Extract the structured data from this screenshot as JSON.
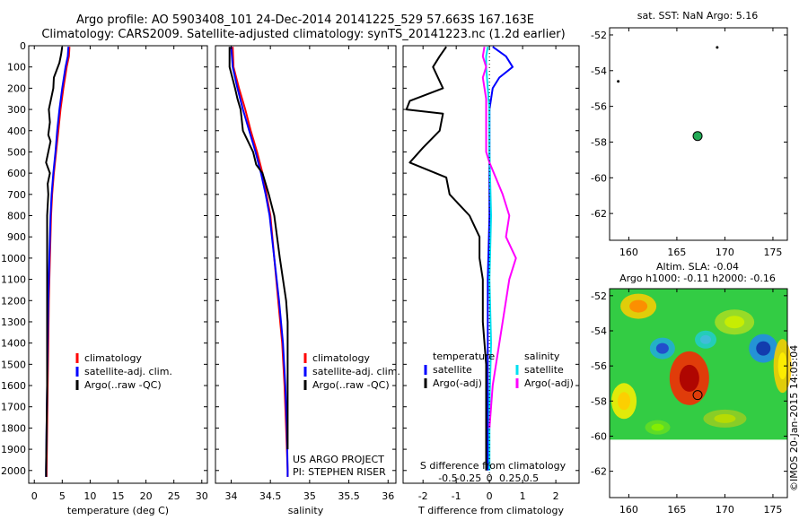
{
  "title_line1": "Argo profile: AO 5903408_101 24-Dec-2014 20141225_529 57.663S 167.163E",
  "title_line2": "Climatology: CARS2009. Satellite-adjusted climatology: synTS_20141223.nc (1.2d earlier)",
  "watermark": "©IMOS 20-Jan-2015 14:05:04",
  "colors": {
    "climatology": "#ff0000",
    "satellite": "#0000ff",
    "argo": "#000000",
    "sal_satellite": "#00e0f0",
    "sal_argo": "#ff00ff"
  },
  "chart_data": [
    {
      "id": "temperature-profile",
      "type": "line",
      "xlabel": "temperature (deg C)",
      "xlim": [
        -1,
        31
      ],
      "ylim": [
        2060,
        0
      ],
      "xticks": [
        "0",
        "5",
        "10",
        "15",
        "20",
        "25",
        "30"
      ],
      "xtick_values": [
        0,
        5,
        10,
        15,
        20,
        25,
        30
      ],
      "yticks": [
        "0",
        "100",
        "200",
        "300",
        "400",
        "500",
        "600",
        "700",
        "800",
        "900",
        "1000",
        "1100",
        "1200",
        "1300",
        "1400",
        "1500",
        "1600",
        "1700",
        "1800",
        "1900",
        "2000"
      ],
      "ytick_values": [
        0,
        100,
        200,
        300,
        400,
        500,
        600,
        700,
        800,
        900,
        1000,
        1100,
        1200,
        1300,
        1400,
        1500,
        1600,
        1700,
        1800,
        1900,
        2000
      ],
      "legend": [
        "climatology",
        "satellite-adj. clim.",
        "Argo(..raw -QC)"
      ],
      "series": [
        {
          "name": "climatology",
          "color": "#ff0000",
          "points": [
            [
              6.3,
              5
            ],
            [
              6.2,
              50
            ],
            [
              5.8,
              100
            ],
            [
              5.2,
              200
            ],
            [
              4.7,
              300
            ],
            [
              4.3,
              400
            ],
            [
              3.9,
              500
            ],
            [
              3.5,
              600
            ],
            [
              3.2,
              700
            ],
            [
              3.0,
              800
            ],
            [
              2.8,
              1000
            ],
            [
              2.6,
              1200
            ],
            [
              2.5,
              1400
            ],
            [
              2.4,
              1600
            ],
            [
              2.3,
              1800
            ],
            [
              2.2,
              2000
            ],
            [
              2.2,
              2030
            ]
          ]
        },
        {
          "name": "satellite-adj. clim.",
          "color": "#0000ff",
          "points": [
            [
              6.1,
              5
            ],
            [
              6.0,
              50
            ],
            [
              5.6,
              100
            ],
            [
              5.0,
              200
            ],
            [
              4.5,
              300
            ],
            [
              4.1,
              400
            ],
            [
              3.8,
              500
            ],
            [
              3.4,
              600
            ],
            [
              3.1,
              700
            ],
            [
              2.9,
              800
            ],
            [
              2.7,
              1000
            ],
            [
              2.5,
              1200
            ],
            [
              2.4,
              1400
            ],
            [
              2.3,
              1600
            ],
            [
              2.2,
              1800
            ],
            [
              2.1,
              2000
            ],
            [
              2.1,
              2030
            ]
          ]
        },
        {
          "name": "Argo(..raw -QC)",
          "color": "#000000",
          "points": [
            [
              5.0,
              5
            ],
            [
              4.8,
              40
            ],
            [
              4.5,
              80
            ],
            [
              3.5,
              150
            ],
            [
              3.4,
              200
            ],
            [
              2.6,
              300
            ],
            [
              2.8,
              360
            ],
            [
              2.5,
              420
            ],
            [
              2.9,
              450
            ],
            [
              2.1,
              550
            ],
            [
              2.8,
              600
            ],
            [
              2.4,
              650
            ],
            [
              2.5,
              700
            ],
            [
              2.3,
              800
            ],
            [
              2.3,
              1000
            ],
            [
              2.3,
              1200
            ],
            [
              2.3,
              1400
            ],
            [
              2.3,
              1600
            ],
            [
              2.2,
              1800
            ],
            [
              2.1,
              2000
            ],
            [
              2.1,
              2030
            ]
          ]
        }
      ]
    },
    {
      "id": "salinity-profile",
      "type": "line",
      "xlabel": "salinity",
      "xlim": [
        33.8,
        36.1
      ],
      "ylim": [
        2060,
        0
      ],
      "xticks": [
        "34",
        "34.5",
        "35",
        "35.5",
        "36"
      ],
      "xtick_values": [
        34,
        34.5,
        35,
        35.5,
        36
      ],
      "legend": [
        "climatology",
        "satellite-adj. clim.",
        "Argo(..raw -QC)"
      ],
      "annotations": [
        "US ARGO PROJECT",
        "PI: STEPHEN RISER"
      ],
      "series": [
        {
          "name": "climatology",
          "color": "#ff0000",
          "points": [
            [
              34.02,
              5
            ],
            [
              34.03,
              100
            ],
            [
              34.1,
              200
            ],
            [
              34.18,
              300
            ],
            [
              34.25,
              400
            ],
            [
              34.33,
              500
            ],
            [
              34.4,
              600
            ],
            [
              34.45,
              700
            ],
            [
              34.5,
              800
            ],
            [
              34.55,
              1000
            ],
            [
              34.6,
              1200
            ],
            [
              34.65,
              1400
            ],
            [
              34.68,
              1600
            ],
            [
              34.7,
              1800
            ],
            [
              34.72,
              2000
            ],
            [
              34.72,
              2030
            ]
          ]
        },
        {
          "name": "satellite-adj. clim.",
          "color": "#0000ff",
          "points": [
            [
              34.0,
              5
            ],
            [
              34.02,
              100
            ],
            [
              34.08,
              200
            ],
            [
              34.15,
              300
            ],
            [
              34.23,
              400
            ],
            [
              34.31,
              500
            ],
            [
              34.38,
              600
            ],
            [
              34.44,
              700
            ],
            [
              34.49,
              800
            ],
            [
              34.55,
              1000
            ],
            [
              34.61,
              1200
            ],
            [
              34.66,
              1400
            ],
            [
              34.69,
              1600
            ],
            [
              34.71,
              1800
            ],
            [
              34.72,
              2000
            ],
            [
              34.72,
              2030
            ]
          ]
        },
        {
          "name": "Argo(..raw -QC)",
          "color": "#000000",
          "points": [
            [
              33.98,
              5
            ],
            [
              33.98,
              100
            ],
            [
              34.05,
              200
            ],
            [
              34.08,
              250
            ],
            [
              34.12,
              300
            ],
            [
              34.15,
              400
            ],
            [
              34.28,
              500
            ],
            [
              34.32,
              560
            ],
            [
              34.4,
              600
            ],
            [
              34.48,
              700
            ],
            [
              34.55,
              800
            ],
            [
              34.62,
              1000
            ],
            [
              34.66,
              1100
            ],
            [
              34.7,
              1200
            ],
            [
              34.72,
              1300
            ],
            [
              34.72,
              1500
            ],
            [
              34.72,
              1700
            ],
            [
              34.72,
              1900
            ]
          ]
        }
      ]
    },
    {
      "id": "difference-profile",
      "type": "line",
      "xlabel": "T difference from climatology",
      "xlabel_top": "S difference from climatology",
      "xlim": [
        -2.6,
        2.7
      ],
      "ylim": [
        2060,
        0
      ],
      "xticks": [
        "-2",
        "-1",
        "0",
        "1",
        "2"
      ],
      "xtick_values": [
        -2,
        -1,
        0,
        1,
        2
      ],
      "sticks": [
        "-0.5",
        "-0.25",
        "0",
        "0.25",
        "0.5"
      ],
      "stick_values": [
        -0.5,
        -0.25,
        0,
        0.25,
        0.5
      ],
      "legend_temperature": [
        "temperature",
        "satellite",
        "Argo(-adj)"
      ],
      "legend_salinity": [
        "salinity",
        "satellite",
        "Argo(-adj)"
      ],
      "series": [
        {
          "name": "temperature satellite",
          "color": "#0000ff",
          "points": [
            [
              0.1,
              5
            ],
            [
              0.5,
              50
            ],
            [
              0.7,
              100
            ],
            [
              0.3,
              150
            ],
            [
              0.1,
              200
            ],
            [
              0.0,
              300
            ],
            [
              0.0,
              500
            ],
            [
              0.0,
              800
            ],
            [
              -0.05,
              1100
            ],
            [
              -0.05,
              1500
            ],
            [
              -0.05,
              2000
            ]
          ]
        },
        {
          "name": "salinity satellite",
          "color": "#00e0f0",
          "points": [
            [
              -0.05,
              5
            ],
            [
              -0.1,
              50
            ],
            [
              -0.1,
              100
            ],
            [
              -0.05,
              200
            ],
            [
              0.0,
              300
            ],
            [
              0.0,
              500
            ],
            [
              0.05,
              800
            ],
            [
              0.0,
              1100
            ],
            [
              0.05,
              1400
            ],
            [
              0.0,
              1700
            ],
            [
              0.0,
              2000
            ]
          ]
        },
        {
          "name": "salinity Argo(-adj)",
          "color": "#ff00ff",
          "points": [
            [
              -0.15,
              5
            ],
            [
              -0.2,
              50
            ],
            [
              -0.1,
              100
            ],
            [
              -0.2,
              150
            ],
            [
              -0.1,
              250
            ],
            [
              -0.1,
              300
            ],
            [
              -0.1,
              400
            ],
            [
              -0.1,
              500
            ],
            [
              0.0,
              550
            ],
            [
              0.4,
              700
            ],
            [
              0.6,
              800
            ],
            [
              0.5,
              900
            ],
            [
              0.8,
              1000
            ],
            [
              0.6,
              1100
            ],
            [
              0.5,
              1200
            ],
            [
              0.4,
              1300
            ],
            [
              0.3,
              1400
            ],
            [
              0.2,
              1500
            ],
            [
              0.1,
              1600
            ],
            [
              0.05,
              1700
            ],
            [
              0.0,
              1800
            ]
          ]
        },
        {
          "name": "temperature Argo(-adj)",
          "color": "#000000",
          "points": [
            [
              -1.3,
              5
            ],
            [
              -1.5,
              50
            ],
            [
              -1.7,
              100
            ],
            [
              -1.4,
              200
            ],
            [
              -2.4,
              260
            ],
            [
              -2.5,
              300
            ],
            [
              -1.4,
              320
            ],
            [
              -1.5,
              400
            ],
            [
              -2.0,
              480
            ],
            [
              -2.4,
              550
            ],
            [
              -1.3,
              620
            ],
            [
              -1.2,
              700
            ],
            [
              -0.6,
              800
            ],
            [
              -0.3,
              900
            ],
            [
              -0.3,
              1000
            ],
            [
              -0.2,
              1100
            ],
            [
              -0.2,
              1300
            ],
            [
              -0.1,
              1500
            ],
            [
              -0.1,
              1700
            ],
            [
              -0.1,
              1900
            ],
            [
              -0.1,
              2000
            ]
          ]
        }
      ]
    },
    {
      "id": "sst-map",
      "type": "scatter",
      "title": "sat. SST: NaN Argo: 5.16",
      "xlim": [
        158,
        176.5
      ],
      "ylim": [
        -63.5,
        -51.6
      ],
      "xticks": [
        "160",
        "165",
        "170",
        "175"
      ],
      "xtick_values": [
        160,
        165,
        170,
        175
      ],
      "yticks": [
        "-52",
        "-54",
        "-56",
        "-58",
        "-60",
        "-62"
      ],
      "ytick_values": [
        -52,
        -54,
        -56,
        -58,
        -60,
        -62
      ],
      "points": [
        {
          "lon": 167.16,
          "lat": -57.66,
          "kind": "profile"
        },
        {
          "lon": 169.2,
          "lat": -52.7,
          "kind": "land"
        },
        {
          "lon": 158.9,
          "lat": -54.6,
          "kind": "land"
        }
      ]
    },
    {
      "id": "sla-map",
      "type": "heatmap",
      "title": "Altim. SLA: -0.04",
      "subtitle": "Argo h1000: -0.11 h2000: -0.16",
      "xlim": [
        158,
        176.5
      ],
      "ylim": [
        -63.5,
        -51.6
      ],
      "xticks": [
        "160",
        "165",
        "170",
        "175"
      ],
      "xtick_values": [
        160,
        165,
        170,
        175
      ],
      "yticks": [
        "-52",
        "-54",
        "-56",
        "-58",
        "-60",
        "-62"
      ],
      "ytick_values": [
        -52,
        -54,
        -56,
        -58,
        -60,
        -62
      ],
      "data_lat_range": [
        -51.6,
        -60.2
      ],
      "points": [
        {
          "lon": 167.16,
          "lat": -57.66,
          "kind": "profile"
        }
      ]
    }
  ]
}
